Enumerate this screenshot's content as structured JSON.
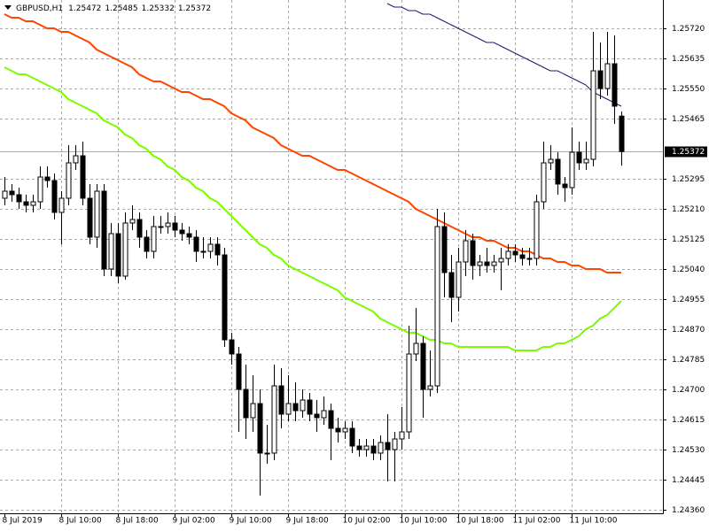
{
  "chart_data": {
    "type": "candlestick",
    "title": "GBPUSD,H1",
    "categories": [
      "8 Jul 2019",
      null,
      null,
      null,
      null,
      null,
      null,
      null,
      "8 Jul 10:00",
      null,
      null,
      null,
      null,
      null,
      null,
      null,
      "8 Jul 18:00",
      null,
      null,
      null,
      null,
      null,
      null,
      null,
      "9 Jul 02:00",
      null,
      null,
      null,
      null,
      null,
      null,
      null,
      "9 Jul 10:00",
      null,
      null,
      null,
      null,
      null,
      null,
      null,
      "9 Jul 18:00",
      null,
      null,
      null,
      null,
      null,
      null,
      null,
      "10 Jul 02:00",
      null,
      null,
      null,
      null,
      null,
      null,
      null,
      "10 Jul 10:00",
      null,
      null,
      null,
      null,
      null,
      null,
      null,
      "10 Jul 18:00",
      null,
      null,
      null,
      null,
      null,
      null,
      null,
      "11 Jul 02:00",
      null,
      null,
      null,
      null,
      null,
      null,
      null,
      "11 Jul 10:00",
      null,
      null,
      null,
      null,
      null,
      null,
      null
    ],
    "open": [
      1.2524,
      1.2526,
      1.2525,
      1.2523,
      1.2522,
      1.2523,
      1.253,
      1.2529,
      1.252,
      1.2524,
      1.2534,
      1.2536,
      1.2524,
      1.2513,
      1.2526,
      1.2504,
      1.2514,
      1.2502,
      1.2517,
      1.2518,
      1.2513,
      1.2509,
      1.2516,
      1.2516,
      1.2517,
      1.2515,
      1.2514,
      1.2513,
      1.2509,
      1.2509,
      1.2511,
      1.2508,
      1.2484,
      1.248,
      1.247,
      1.2462,
      1.2466,
      1.2452,
      1.2452,
      1.2471,
      1.2463,
      1.2466,
      1.2464,
      1.2467,
      1.2463,
      1.2462,
      1.2464,
      1.2459,
      1.2458,
      1.2459,
      1.2454,
      1.2453,
      1.2454,
      1.2452,
      1.2455,
      1.2453,
      1.2456,
      1.2458,
      1.248,
      1.2483,
      1.247,
      1.2471,
      1.2516,
      1.2503,
      1.2496,
      1.2506,
      1.2512,
      1.2505,
      1.2506,
      1.2505,
      1.2506,
      1.2507,
      1.2509,
      1.2508,
      1.2507,
      1.2507,
      1.2523,
      1.2534,
      1.2535,
      1.2528,
      1.2527,
      1.2537,
      1.2534,
      1.2535,
      1.256,
      1.2555,
      1.2562,
      1.25472
    ],
    "high": [
      1.253,
      1.2528,
      1.2527,
      1.2525,
      1.2525,
      1.2533,
      1.2533,
      1.2531,
      1.2526,
      1.2539,
      1.2539,
      1.254,
      1.2528,
      1.2528,
      1.2528,
      1.2517,
      1.2517,
      1.252,
      1.2522,
      1.252,
      1.2515,
      1.2519,
      1.2519,
      1.252,
      1.2519,
      1.2517,
      1.2516,
      1.2515,
      1.2513,
      1.2513,
      1.2513,
      1.251,
      1.2486,
      1.2482,
      1.2477,
      1.2474,
      1.247,
      1.246,
      1.2477,
      1.2476,
      1.2474,
      1.2472,
      1.247,
      1.2469,
      1.2467,
      1.2468,
      1.2466,
      1.2462,
      1.2461,
      1.2461,
      1.2456,
      1.2456,
      1.2456,
      1.2457,
      1.2463,
      1.2458,
      1.2465,
      1.2488,
      1.2493,
      1.2485,
      1.2481,
      1.2521,
      1.252,
      1.2508,
      1.251,
      1.2515,
      1.2514,
      1.2508,
      1.251,
      1.2508,
      1.251,
      1.2511,
      1.2511,
      1.251,
      1.251,
      1.2525,
      1.254,
      1.2539,
      1.2537,
      1.253,
      1.2544,
      1.254,
      1.254,
      1.2571,
      1.2568,
      1.2571,
      1.257,
      1.25485
    ],
    "low": [
      1.2522,
      1.2523,
      1.2521,
      1.252,
      1.252,
      1.2521,
      1.2527,
      1.2518,
      1.2511,
      1.2522,
      1.2532,
      1.2522,
      1.2511,
      1.251,
      1.2502,
      1.2502,
      1.25,
      1.2501,
      1.2515,
      1.251,
      1.2507,
      1.2507,
      1.2514,
      1.2514,
      1.2513,
      1.2512,
      1.2511,
      1.2506,
      1.2507,
      1.2507,
      1.2505,
      1.2482,
      1.2477,
      1.2458,
      1.2456,
      1.2458,
      1.244,
      1.2449,
      1.245,
      1.2459,
      1.2461,
      1.2461,
      1.2462,
      1.2461,
      1.2458,
      1.246,
      1.245,
      1.2455,
      1.2456,
      1.2452,
      1.2451,
      1.2451,
      1.245,
      1.245,
      1.2444,
      1.2444,
      1.2453,
      1.2456,
      1.2478,
      1.2462,
      1.2468,
      1.2469,
      1.2496,
      1.2489,
      1.2492,
      1.2502,
      1.2501,
      1.2502,
      1.2503,
      1.2503,
      1.2498,
      1.2505,
      1.2506,
      1.2505,
      1.2505,
      1.2505,
      1.2521,
      1.2532,
      1.2525,
      1.2523,
      1.2525,
      1.2532,
      1.2532,
      1.2533,
      1.2552,
      1.2553,
      1.2545,
      1.25332
    ],
    "close": [
      1.2526,
      1.2525,
      1.2523,
      1.2522,
      1.2523,
      1.253,
      1.2529,
      1.252,
      1.2524,
      1.2534,
      1.2536,
      1.2524,
      1.2513,
      1.2526,
      1.2504,
      1.2514,
      1.2502,
      1.2517,
      1.2518,
      1.2513,
      1.2509,
      1.2516,
      1.2516,
      1.2517,
      1.2515,
      1.2514,
      1.2513,
      1.2509,
      1.2509,
      1.2511,
      1.2508,
      1.2484,
      1.248,
      1.247,
      1.2462,
      1.2466,
      1.2452,
      1.2452,
      1.2471,
      1.2463,
      1.2466,
      1.2464,
      1.2467,
      1.2463,
      1.2462,
      1.2464,
      1.2459,
      1.2458,
      1.2459,
      1.2454,
      1.2453,
      1.2454,
      1.2452,
      1.2455,
      1.2453,
      1.2456,
      1.2458,
      1.248,
      1.2483,
      1.247,
      1.2471,
      1.2516,
      1.2503,
      1.2496,
      1.2506,
      1.2512,
      1.2505,
      1.2506,
      1.2505,
      1.2506,
      1.2507,
      1.2509,
      1.2508,
      1.2507,
      1.2507,
      1.2523,
      1.2534,
      1.2535,
      1.2528,
      1.2527,
      1.2537,
      1.2534,
      1.2535,
      1.256,
      1.2555,
      1.2562,
      1.255,
      1.25372
    ],
    "up_color": "#ffffff",
    "down_color": "#000000",
    "overlays": [
      {
        "color": "#191970",
        "values": [
          null,
          null,
          null,
          null,
          null,
          null,
          null,
          null,
          null,
          null,
          null,
          null,
          null,
          null,
          null,
          null,
          null,
          null,
          null,
          null,
          null,
          null,
          null,
          null,
          null,
          null,
          null,
          null,
          null,
          null,
          null,
          null,
          null,
          null,
          null,
          null,
          null,
          null,
          null,
          null,
          null,
          null,
          null,
          null,
          null,
          null,
          null,
          null,
          null,
          null,
          null,
          null,
          null,
          null,
          1.2579,
          1.2578,
          1.2578,
          1.2577,
          1.2577,
          1.2576,
          1.2576,
          1.2575,
          1.2574,
          1.2573,
          1.2572,
          1.2571,
          1.257,
          1.2569,
          1.2568,
          1.2568,
          1.2567,
          1.2566,
          1.2565,
          1.2564,
          1.2563,
          1.2562,
          1.2561,
          1.256,
          1.256,
          1.2559,
          1.2558,
          1.2557,
          1.2556,
          1.2554,
          1.2553,
          1.2552,
          1.2551,
          1.255
        ]
      },
      {
        "color": "#ff4500",
        "values": [
          1.2576,
          1.2575,
          1.2575,
          1.2574,
          1.2574,
          1.2573,
          1.2572,
          1.2572,
          1.2571,
          1.2571,
          1.257,
          1.2569,
          1.2568,
          1.2566,
          1.2565,
          1.2564,
          1.2563,
          1.2562,
          1.2561,
          1.2559,
          1.2558,
          1.2557,
          1.2557,
          1.2556,
          1.2555,
          1.2554,
          1.2554,
          1.2553,
          1.2552,
          1.2552,
          1.2551,
          1.255,
          1.2548,
          1.2547,
          1.2546,
          1.2544,
          1.2543,
          1.2542,
          1.2541,
          1.2539,
          1.2538,
          1.2537,
          1.2536,
          1.2536,
          1.2535,
          1.2534,
          1.2533,
          1.2532,
          1.2532,
          1.2531,
          1.253,
          1.2529,
          1.2528,
          1.2527,
          1.2526,
          1.2525,
          1.2524,
          1.2523,
          1.2521,
          1.252,
          1.2519,
          1.2518,
          1.2517,
          1.2516,
          1.2515,
          1.2514,
          1.2513,
          1.2513,
          1.2512,
          1.2512,
          1.2511,
          1.251,
          1.251,
          1.2509,
          1.2509,
          1.2508,
          1.2507,
          1.2507,
          1.2506,
          1.2506,
          1.2505,
          1.2505,
          1.2504,
          1.2504,
          1.2504,
          1.2503,
          1.2503,
          1.2503
        ]
      },
      {
        "color": "#7cfc00",
        "values": [
          1.2561,
          1.256,
          1.2559,
          1.2559,
          1.2558,
          1.2557,
          1.2556,
          1.2555,
          1.2554,
          1.2552,
          1.2551,
          1.255,
          1.2549,
          1.2548,
          1.2546,
          1.2545,
          1.2544,
          1.2542,
          1.2541,
          1.2539,
          1.2538,
          1.2536,
          1.2535,
          1.2533,
          1.2532,
          1.253,
          1.2529,
          1.2527,
          1.2526,
          1.2524,
          1.2523,
          1.2521,
          1.2519,
          1.2517,
          1.2515,
          1.2513,
          1.2511,
          1.251,
          1.2508,
          1.2507,
          1.2505,
          1.2504,
          1.2503,
          1.2502,
          1.2501,
          1.25,
          1.2499,
          1.2498,
          1.2496,
          1.2495,
          1.2494,
          1.2493,
          1.2492,
          1.249,
          1.2489,
          1.2488,
          1.2487,
          1.2486,
          1.2486,
          1.2485,
          1.2484,
          1.2484,
          1.2483,
          1.2483,
          1.2482,
          1.2482,
          1.2482,
          1.2482,
          1.2482,
          1.2482,
          1.2482,
          1.2482,
          1.2481,
          1.2481,
          1.2481,
          1.2481,
          1.2482,
          1.2482,
          1.2483,
          1.2483,
          1.2484,
          1.2485,
          1.2487,
          1.2488,
          1.249,
          1.2491,
          1.2493,
          1.2495
        ]
      }
    ],
    "ylim": [
      1.2435,
      1.258
    ],
    "yticks": [
      {
        "value": 1.2572,
        "label": "1.25720"
      },
      1.25635,
      {
        "value": 1.2555,
        "label": "1.25550"
      },
      1.25465,
      1.25295,
      {
        "value": 1.2521,
        "label": "1.25210"
      },
      1.25125,
      {
        "value": 1.2504,
        "label": "1.25040"
      },
      1.24955,
      {
        "value": 1.2487,
        "label": "1.24870"
      },
      1.24785,
      {
        "value": 1.247,
        "label": "1.24700"
      },
      1.24615,
      {
        "value": 1.2453,
        "label": "1.24530"
      },
      1.24445,
      {
        "value": 1.2436,
        "label": "1.24360"
      }
    ],
    "grid": true
  }
}
